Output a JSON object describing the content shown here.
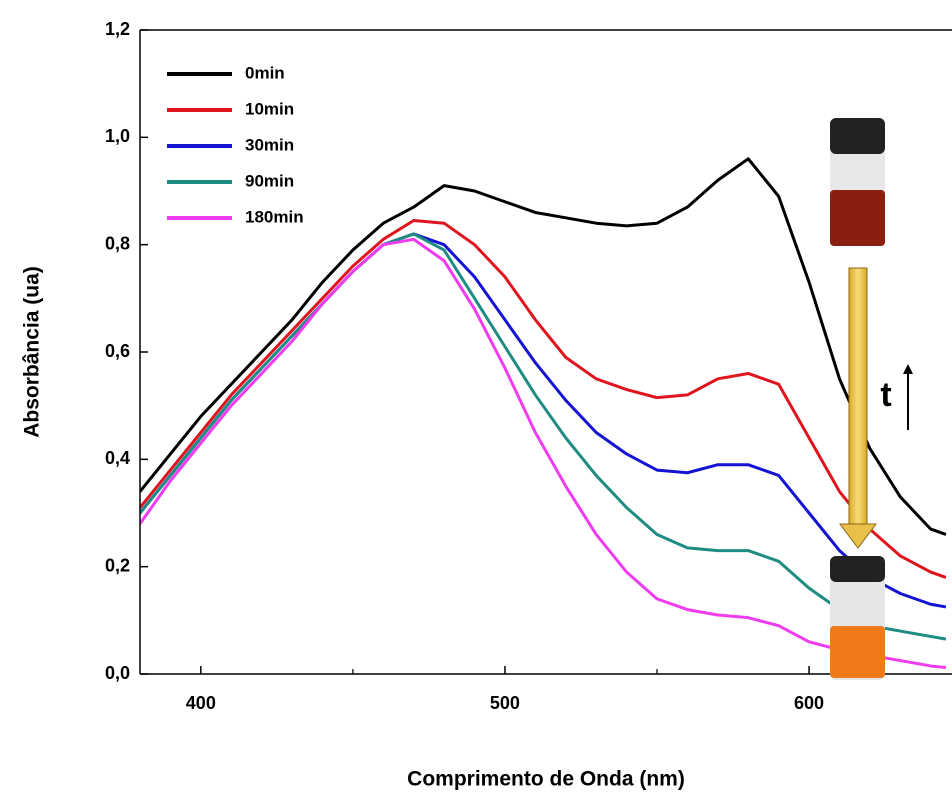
{
  "chart_data": {
    "type": "line",
    "x_label": "Comprimento de Onda (nm)",
    "y_label": "Absorbância (ua)",
    "annotation": "t",
    "xlim": [
      380,
      647
    ],
    "ylim": [
      0,
      1.2
    ],
    "xticks": [
      400,
      500,
      600
    ],
    "xminorticks": [
      450,
      550
    ],
    "yticks": [
      {
        "value": 0,
        "label": "0,0"
      },
      {
        "value": 0.2,
        "label": "0,2"
      },
      {
        "value": 0.4,
        "label": "0,4"
      },
      {
        "value": 0.6,
        "label": "0,6"
      },
      {
        "value": 0.8,
        "label": "0,8"
      },
      {
        "value": 1.0,
        "label": "1,0"
      },
      {
        "value": 1.2,
        "label": "1,2"
      }
    ],
    "legend": "upper left",
    "x": [
      380,
      390,
      400,
      410,
      420,
      430,
      440,
      450,
      460,
      470,
      480,
      490,
      500,
      510,
      520,
      530,
      540,
      550,
      560,
      570,
      580,
      590,
      600,
      610,
      620,
      630,
      640,
      645
    ],
    "series": [
      {
        "name": "0min",
        "color": "#000000",
        "values": [
          0.34,
          0.41,
          0.48,
          0.54,
          0.6,
          0.66,
          0.73,
          0.79,
          0.84,
          0.87,
          0.91,
          0.9,
          0.88,
          0.86,
          0.85,
          0.84,
          0.835,
          0.84,
          0.87,
          0.92,
          0.96,
          0.89,
          0.73,
          0.55,
          0.42,
          0.33,
          0.27,
          0.26
        ]
      },
      {
        "name": "10min",
        "color": "#e0141e",
        "values": [
          0.31,
          0.38,
          0.45,
          0.52,
          0.58,
          0.64,
          0.7,
          0.76,
          0.81,
          0.845,
          0.84,
          0.8,
          0.74,
          0.66,
          0.59,
          0.55,
          0.53,
          0.515,
          0.52,
          0.55,
          0.56,
          0.54,
          0.44,
          0.34,
          0.27,
          0.22,
          0.19,
          0.18
        ]
      },
      {
        "name": "30min",
        "color": "#1414d2",
        "values": [
          0.3,
          0.37,
          0.44,
          0.51,
          0.57,
          0.63,
          0.69,
          0.75,
          0.8,
          0.82,
          0.8,
          0.74,
          0.66,
          0.58,
          0.51,
          0.45,
          0.41,
          0.38,
          0.375,
          0.39,
          0.39,
          0.37,
          0.3,
          0.23,
          0.18,
          0.15,
          0.13,
          0.125
        ]
      },
      {
        "name": "90min",
        "color": "#1e8c82",
        "values": [
          0.3,
          0.37,
          0.44,
          0.51,
          0.57,
          0.63,
          0.69,
          0.75,
          0.8,
          0.82,
          0.79,
          0.7,
          0.61,
          0.52,
          0.44,
          0.37,
          0.31,
          0.26,
          0.235,
          0.23,
          0.23,
          0.21,
          0.16,
          0.12,
          0.09,
          0.08,
          0.07,
          0.065
        ]
      },
      {
        "name": "180min",
        "color": "#f03cf0",
        "values": [
          0.28,
          0.36,
          0.43,
          0.5,
          0.56,
          0.62,
          0.69,
          0.75,
          0.8,
          0.81,
          0.77,
          0.68,
          0.57,
          0.45,
          0.35,
          0.26,
          0.19,
          0.14,
          0.12,
          0.11,
          0.105,
          0.09,
          0.06,
          0.045,
          0.035,
          0.025,
          0.015,
          0.012
        ]
      }
    ]
  }
}
